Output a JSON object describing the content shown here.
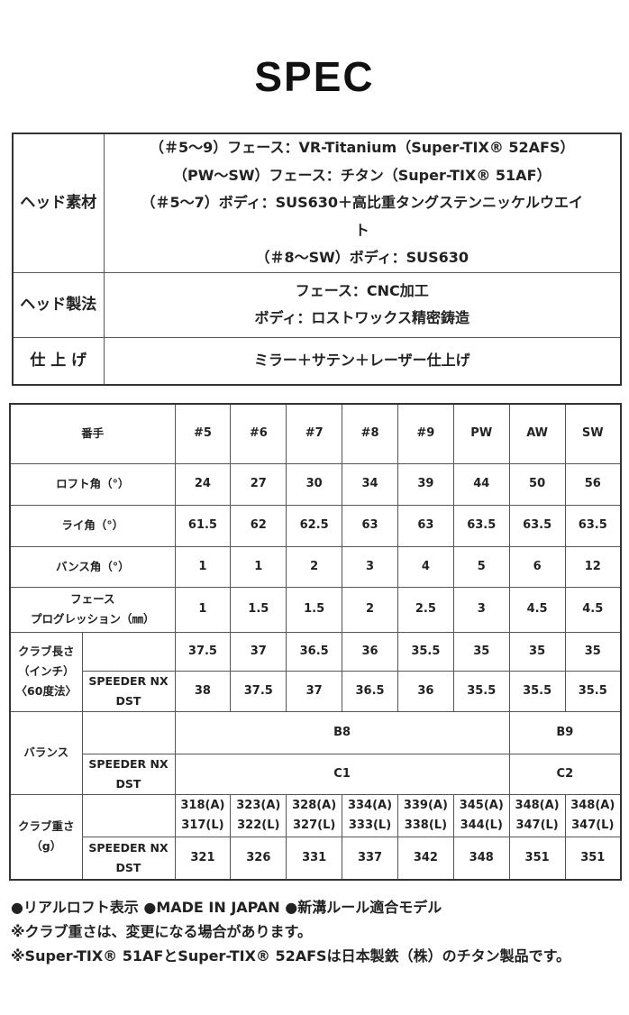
{
  "title": "SPEC",
  "materials": {
    "head_material_label": "ヘッド素材",
    "head_material_lines": [
      "（＃5～9）フェース：VR-Titanium（Super-TIX® 52AFS）",
      "（PW～SW）フェース：チタン（Super-TIX® 51AF）",
      "（＃5～7）ボディ：SUS630＋高比重タングステンニッケルウエイ",
      "ト",
      "（＃8～SW）ボディ：SUS630"
    ],
    "head_method_label": "ヘッド製法",
    "head_method_lines": [
      "フェース：CNC加工",
      "ボディ：ロストワックス精密鋳造"
    ],
    "finish_label": "仕 上 げ",
    "finish_lines": [
      "ミラー＋サテン＋レーザー仕上げ"
    ]
  },
  "spec": {
    "header_label": "番手",
    "columns": [
      "#5",
      "#6",
      "#7",
      "#8",
      "#9",
      "PW",
      "AW",
      "SW"
    ],
    "rows": [
      {
        "label": "ロフト角（°）",
        "values": [
          "24",
          "27",
          "30",
          "34",
          "39",
          "44",
          "50",
          "56"
        ]
      },
      {
        "label": "ライ角（°）",
        "values": [
          "61.5",
          "62",
          "62.5",
          "63",
          "63",
          "63.5",
          "63.5",
          "63.5"
        ]
      },
      {
        "label": "バンス角（°）",
        "values": [
          "1",
          "1",
          "2",
          "3",
          "4",
          "5",
          "6",
          "12"
        ]
      },
      {
        "label": "フェース\nプログレッション（㎜）",
        "values": [
          "1",
          "1.5",
          "1.5",
          "2",
          "2.5",
          "3",
          "4.5",
          "4.5"
        ]
      }
    ],
    "length": {
      "label": "クラブ長さ\n（インチ）\n〈60度法〉",
      "rows": [
        {
          "sub": "",
          "values": [
            "37.5",
            "37",
            "36.5",
            "36",
            "35.5",
            "35",
            "35",
            "35"
          ]
        },
        {
          "sub": "SPEEDER NX\nDST",
          "values": [
            "38",
            "37.5",
            "37",
            "36.5",
            "36",
            "35.5",
            "35.5",
            "35.5"
          ]
        }
      ]
    },
    "balance": {
      "label": "バランス",
      "rows": [
        {
          "sub": "",
          "values": [
            "B8",
            "B9"
          ]
        },
        {
          "sub": "SPEEDER NX\nDST",
          "values": [
            "C1",
            "C2"
          ]
        }
      ]
    },
    "weight": {
      "label": "クラブ重さ\n（g）",
      "rows": [
        {
          "sub": "",
          "values": [
            "318(A)\n317(L)",
            "323(A)\n322(L)",
            "328(A)\n327(L)",
            "334(A)\n333(L)",
            "339(A)\n338(L)",
            "345(A)\n344(L)",
            "348(A)\n347(L)",
            "348(A)\n347(L)"
          ]
        },
        {
          "sub": "SPEEDER NX\nDST",
          "values": [
            "321",
            "326",
            "331",
            "337",
            "342",
            "348",
            "351",
            "351"
          ]
        }
      ]
    }
  },
  "notes": [
    "●リアルロフト表示 ●MADE IN JAPAN ●新溝ルール適合モデル",
    "※クラブ重さは、変更になる場合があります。",
    "※Super-TIX® 51AFとSuper-TIX® 52AFSは日本製鉄（株）のチタン製品です。"
  ]
}
